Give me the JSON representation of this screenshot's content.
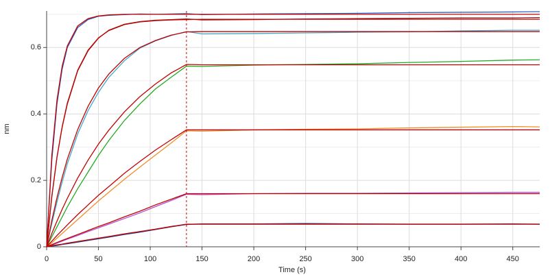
{
  "chart_data": {
    "type": "line",
    "x_label": "Time (s)",
    "y_label": "nm",
    "x": [
      0,
      5,
      10,
      15,
      20,
      30,
      40,
      50,
      60,
      75,
      90,
      105,
      120,
      135,
      150,
      200,
      250,
      300,
      350,
      400,
      450,
      476
    ],
    "series": [
      {
        "color": "#2f5fbf",
        "values": [
          0,
          0.26,
          0.43,
          0.535,
          0.6,
          0.66,
          0.684,
          0.694,
          0.697,
          0.699,
          0.701,
          0.7,
          0.701,
          0.702,
          0.699,
          0.701,
          0.702,
          0.703,
          0.705,
          0.706,
          0.707,
          0.708
        ]
      },
      {
        "color": "#8b1a1a",
        "values": [
          0,
          0.15,
          0.27,
          0.36,
          0.43,
          0.53,
          0.59,
          0.628,
          0.652,
          0.67,
          0.678,
          0.682,
          0.684,
          0.686,
          0.683,
          0.684,
          0.686,
          0.687,
          0.688,
          0.689,
          0.689,
          0.69
        ]
      },
      {
        "color": "#3fa7c9",
        "values": [
          0,
          0.07,
          0.135,
          0.195,
          0.25,
          0.34,
          0.41,
          0.465,
          0.51,
          0.56,
          0.598,
          0.62,
          0.636,
          0.648,
          0.641,
          0.642,
          0.644,
          0.646,
          0.647,
          0.65,
          0.652,
          0.652
        ]
      },
      {
        "color": "#22aa22",
        "values": [
          0,
          0.03,
          0.06,
          0.09,
          0.12,
          0.175,
          0.225,
          0.275,
          0.32,
          0.38,
          0.43,
          0.475,
          0.51,
          0.544,
          0.543,
          0.547,
          0.549,
          0.551,
          0.555,
          0.558,
          0.562,
          0.563
        ]
      },
      {
        "color": "#f28c28",
        "values": [
          0,
          0.012,
          0.026,
          0.04,
          0.054,
          0.082,
          0.11,
          0.138,
          0.164,
          0.203,
          0.24,
          0.276,
          0.312,
          0.349,
          0.348,
          0.352,
          0.354,
          0.355,
          0.358,
          0.36,
          0.362,
          0.361
        ]
      },
      {
        "color": "#b04fd0",
        "values": [
          0,
          0.005,
          0.011,
          0.017,
          0.023,
          0.034,
          0.046,
          0.057,
          0.068,
          0.085,
          0.102,
          0.121,
          0.139,
          0.158,
          0.157,
          0.16,
          0.161,
          0.161,
          0.162,
          0.163,
          0.164,
          0.164
        ]
      },
      {
        "color": "#2b3f8f",
        "values": [
          0,
          0.002,
          0.004,
          0.007,
          0.009,
          0.014,
          0.019,
          0.024,
          0.029,
          0.037,
          0.044,
          0.052,
          0.06,
          0.067,
          0.069,
          0.069,
          0.07,
          0.069,
          0.068,
          0.068,
          0.069,
          0.068
        ]
      },
      {
        "color": "#c00000",
        "values": [
          0,
          0.275,
          0.4425,
          0.544,
          0.605,
          0.665,
          0.687,
          0.695,
          0.698,
          0.7,
          0.7,
          0.7,
          0.7,
          0.7,
          0.7,
          0.7,
          0.7,
          0.7,
          0.7,
          0.7,
          0.7,
          0.7
        ]
      },
      {
        "color": "#c00000",
        "values": [
          0,
          0.152,
          0.27,
          0.362,
          0.433,
          0.532,
          0.592,
          0.629,
          0.651,
          0.669,
          0.677,
          0.681,
          0.683,
          0.684,
          0.685,
          0.685,
          0.685,
          0.685,
          0.685,
          0.685,
          0.685,
          0.685
        ]
      },
      {
        "color": "#c00000",
        "values": [
          0,
          0.079,
          0.148,
          0.209,
          0.264,
          0.353,
          0.423,
          0.478,
          0.52,
          0.567,
          0.6,
          0.621,
          0.637,
          0.647,
          0.648,
          0.648,
          0.648,
          0.648,
          0.648,
          0.648,
          0.648,
          0.648
        ]
      },
      {
        "color": "#c00000",
        "values": [
          0,
          0.04,
          0.0775,
          0.113,
          0.146,
          0.207,
          0.261,
          0.309,
          0.351,
          0.406,
          0.452,
          0.49,
          0.523,
          0.549,
          0.548,
          0.548,
          0.548,
          0.548,
          0.548,
          0.548,
          0.548,
          0.548
        ]
      },
      {
        "color": "#c00000",
        "values": [
          0,
          0.017,
          0.034,
          0.05,
          0.066,
          0.097,
          0.126,
          0.155,
          0.181,
          0.221,
          0.257,
          0.291,
          0.322,
          0.352,
          0.352,
          0.352,
          0.352,
          0.352,
          0.352,
          0.352,
          0.352,
          0.352
        ]
      },
      {
        "color": "#c00000",
        "values": [
          0,
          0.0065,
          0.013,
          0.019,
          0.025,
          0.037,
          0.049,
          0.061,
          0.072,
          0.09,
          0.107,
          0.126,
          0.143,
          0.16,
          0.16,
          0.16,
          0.16,
          0.16,
          0.16,
          0.16,
          0.16,
          0.16
        ]
      },
      {
        "color": "#c00000",
        "values": [
          0,
          0.003,
          0.006,
          0.008,
          0.011,
          0.016,
          0.021,
          0.026,
          0.031,
          0.039,
          0.046,
          0.053,
          0.061,
          0.068,
          0.068,
          0.068,
          0.068,
          0.068,
          0.068,
          0.068,
          0.068,
          0.068
        ]
      }
    ],
    "xlim": [
      0,
      476
    ],
    "ylim": [
      0,
      0.71
    ],
    "xticks": [
      0,
      50,
      100,
      150,
      200,
      250,
      300,
      350,
      400,
      450
    ],
    "yticks": [
      0,
      0.2,
      0.4,
      0.6
    ],
    "y_minor_ticks": [
      0.1,
      0.3,
      0.5,
      0.7
    ],
    "grid": true,
    "vline": {
      "x": 135,
      "color": "#cc0000"
    }
  }
}
